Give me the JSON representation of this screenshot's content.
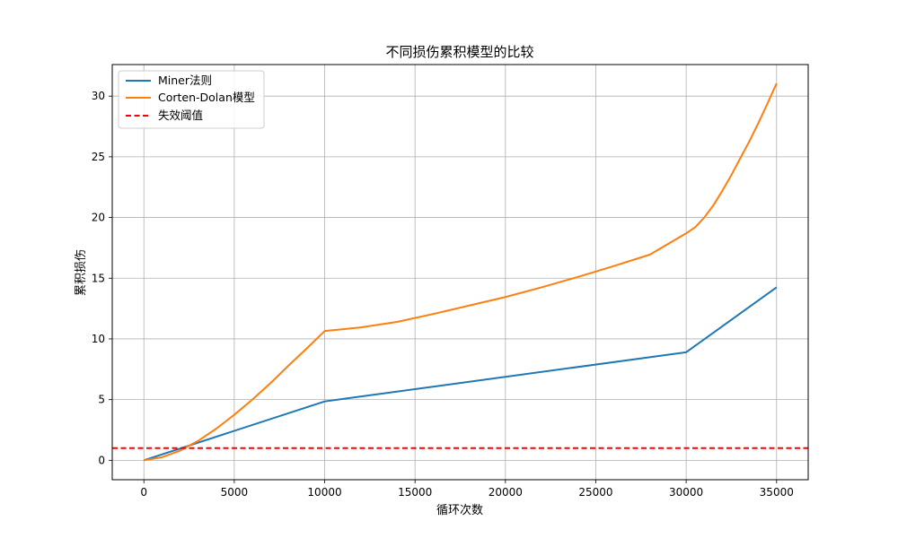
{
  "chart_data": {
    "type": "line",
    "title": "不同损伤累积模型的比较",
    "xlabel": "循环次数",
    "ylabel": "累积损伤",
    "xlim": [
      -1750,
      36750
    ],
    "ylim": [
      -1.6,
      32.6
    ],
    "xticks": [
      0,
      5000,
      10000,
      15000,
      20000,
      25000,
      30000,
      35000
    ],
    "yticks": [
      0,
      5,
      10,
      15,
      20,
      25,
      30
    ],
    "grid": true,
    "legend_position": "top-left",
    "series": [
      {
        "name": "Miner法则",
        "color": "#1f77b4",
        "style": "solid",
        "x": [
          0,
          10000,
          30000,
          35000
        ],
        "y": [
          0,
          4.85,
          8.9,
          14.25
        ]
      },
      {
        "name": "Corten-Dolan模型",
        "color": "#ff7f0e",
        "style": "solid",
        "x": [
          0,
          1000,
          2000,
          3000,
          4000,
          5000,
          6000,
          7000,
          8000,
          9000,
          10000,
          12000,
          14000,
          16000,
          18000,
          20000,
          22000,
          24000,
          26000,
          28000,
          30000,
          30500,
          31000,
          31500,
          32000,
          32500,
          33000,
          33500,
          34000,
          34500,
          35000
        ],
        "y": [
          0,
          0.25,
          0.8,
          1.6,
          2.6,
          3.75,
          5.0,
          6.35,
          7.8,
          9.2,
          10.65,
          10.95,
          11.4,
          12.05,
          12.75,
          13.45,
          14.25,
          15.1,
          16.0,
          16.95,
          18.7,
          19.2,
          20.0,
          21.0,
          22.2,
          23.5,
          24.9,
          26.3,
          27.8,
          29.4,
          31.05
        ]
      },
      {
        "name": "失效阈值",
        "color": "#ff0000",
        "style": "dashed",
        "type": "hline",
        "y_value": 1.0
      }
    ]
  }
}
